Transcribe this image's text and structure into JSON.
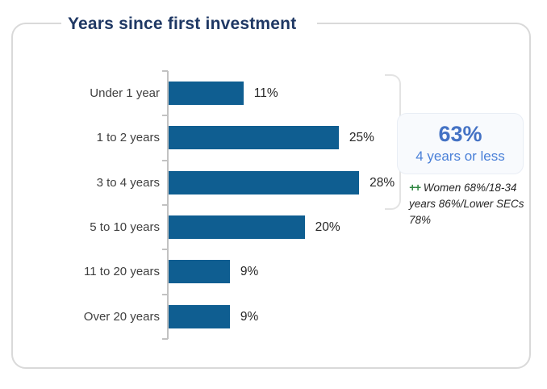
{
  "title": "Years since first investment",
  "chart_data": {
    "type": "bar",
    "orientation": "horizontal",
    "title": "Years since first investment",
    "categories": [
      "Under 1 year",
      "1 to 2 years",
      "3 to 4 years",
      "5 to 10 years",
      "11 to 20 years",
      "Over 20 years"
    ],
    "values": [
      11,
      25,
      28,
      20,
      9,
      9
    ],
    "value_labels": [
      "11%",
      "25%",
      "28%",
      "20%",
      "9%",
      "9%"
    ],
    "xlim": [
      0,
      30
    ],
    "grid": false,
    "legend": "none",
    "bar_color": "#0f5e91",
    "annotations": {
      "callout_value": "63%",
      "callout_label": "4 years or less",
      "note_marker": "++",
      "note_text": "Women 68%/18-34 years 86%/Lower SECs 78%"
    }
  },
  "callout": {
    "value": "63%",
    "label": "4 years or less"
  },
  "note": {
    "marker": "++",
    "text": "Women 68%/18-34 years 86%/Lower SECs 78%"
  },
  "colors": {
    "bar": "#0f5e91",
    "title_text": "#1f3864",
    "callout_value": "#4472c4",
    "callout_label": "#4a80d8",
    "note_marker_green": "#2e8540",
    "axis_line": "#c2c2c2",
    "card_border": "#d9d9d9"
  }
}
